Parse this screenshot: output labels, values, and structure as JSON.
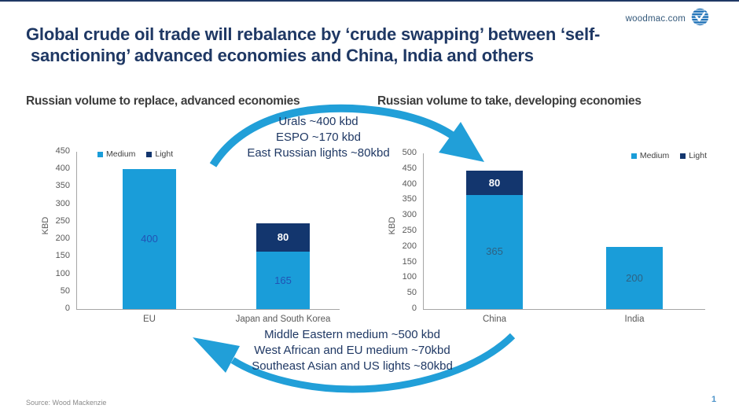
{
  "brand": {
    "url": "woodmac.com",
    "logo_icon": "woodmac-circle-logo"
  },
  "title": {
    "line1": "Global crude oil trade will rebalance by ‘crude swapping’ between ‘self-",
    "line2": "sanctioning’ advanced economies and China, India and others"
  },
  "annotations": {
    "top": [
      "Urals ~400 kbd",
      "ESPO ~170 kbd",
      "East Russian lights ~80kbd"
    ],
    "bottom": [
      "Middle Eastern medium ~500 kbd",
      "West African and EU medium ~70kbd",
      "Southeast Asian and US lights ~80kbd"
    ]
  },
  "colors": {
    "navy": "#1f3864",
    "bar_medium": "#1a9dd9",
    "bar_light": "#13366e",
    "arrow_blue": "#219fd8",
    "axis_gray": "#a6a6a6"
  },
  "chart_data": [
    {
      "type": "bar",
      "stacked": true,
      "title": "Russian volume to replace, advanced economies",
      "ylabel": "KBD",
      "ylim": [
        0,
        450
      ],
      "ytick_step": 50,
      "grid": false,
      "legend_position": "top-left",
      "categories": [
        "EU",
        "Japan and South Korea"
      ],
      "series": [
        {
          "name": "Medium",
          "color": "#1a9dd9",
          "values": [
            400,
            165
          ]
        },
        {
          "name": "Light",
          "color": "#13366e",
          "values": [
            0,
            80
          ]
        }
      ],
      "value_label_color": "#2153b5",
      "value_label_color_on_dark": "#ffffff"
    },
    {
      "type": "bar",
      "stacked": true,
      "title": "Russian volume to take, developing economies",
      "ylabel": "KBD",
      "ylim": [
        0,
        500
      ],
      "ytick_step": 50,
      "grid": false,
      "legend_position": "top-right",
      "categories": [
        "China",
        "India"
      ],
      "series": [
        {
          "name": "Medium",
          "color": "#1a9dd9",
          "values": [
            365,
            200
          ]
        },
        {
          "name": "Light",
          "color": "#13366e",
          "values": [
            80,
            0
          ]
        }
      ],
      "value_label_color": "#2e6283",
      "value_label_color_on_dark": "#ffffff"
    }
  ],
  "footer": {
    "source": "Source: Wood Mackenzie",
    "page_number": "1"
  }
}
